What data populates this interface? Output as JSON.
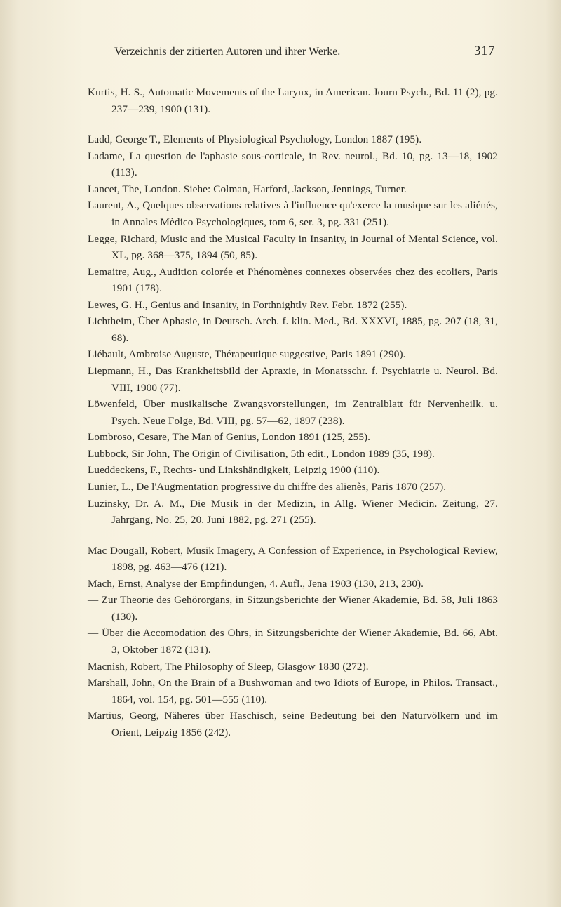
{
  "header": {
    "title": "Verzeichnis der zitierten Autoren und ihrer Werke.",
    "page_number": "317"
  },
  "entries": [
    "Kurtis, H. S., Automatic Movements of the Larynx, in American. Journ Psych., Bd. 11 (2), pg. 237—239, 1900 (131).",
    "Ladd, George T., Elements of Physiological Psychology, London 1887 (195).",
    "Ladame, La question de l'aphasie sous-corticale, in Rev. neurol., Bd. 10, pg. 13—18, 1902 (113).",
    "Lancet, The, London. Siehe: Colman, Harford, Jackson, Jennings, Turner.",
    "Laurent, A., Quelques observations relatives à l'influence qu'exerce la musique sur les aliénés, in Annales Mèdico Psychologiques, tom 6, ser. 3, pg. 331 (251).",
    "Legge, Richard, Music and the Musical Faculty in Insanity, in Journal of Mental Science, vol. XL, pg. 368—375, 1894 (50, 85).",
    "Lemaitre, Aug., Audition colorée et Phénomènes connexes observées chez des ecoliers, Paris 1901 (178).",
    "Lewes, G. H., Genius and Insanity, in Forthnightly Rev. Febr. 1872 (255).",
    "Lichtheim, Über Aphasie, in Deutsch. Arch. f. klin. Med., Bd. XXXVI, 1885, pg. 207 (18, 31, 68).",
    "Liébault, Ambroise Auguste, Thérapeutique suggestive, Paris 1891 (290).",
    "Liepmann, H., Das Krankheitsbild der Apraxie, in Monatsschr. f. Psychiatrie u. Neurol. Bd. VIII, 1900 (77).",
    "Löwenfeld, Über musikalische Zwangsvorstellungen, im Zentralblatt für Nervenheilk. u. Psych. Neue Folge, Bd. VIII, pg. 57—62, 1897 (238).",
    "Lombroso, Cesare, The Man of Genius, London 1891 (125, 255).",
    "Lubbock, Sir John, The Origin of Civilisation, 5th edit., London 1889 (35, 198).",
    "Lueddeckens, F., Rechts- und Linkshändigkeit, Leipzig 1900 (110).",
    "Lunier, L., De l'Augmentation progressive du chiffre des alienès, Paris 1870 (257).",
    "Luzinsky, Dr. A. M., Die Musik in der Medizin, in Allg. Wiener Medicin. Zeitung, 27. Jahrgang, No. 25, 20. Juni 1882, pg. 271 (255).",
    "Mac Dougall, Robert, Musik Imagery, A Confession of Experience, in Psychological Review, 1898, pg. 463—476 (121).",
    "Mach, Ernst, Analyse der Empfindungen, 4. Aufl., Jena 1903 (130, 213, 230).",
    "— Zur Theorie des Gehörorgans, in Sitzungsberichte der Wiener Akademie, Bd. 58, Juli 1863 (130).",
    "— Über die Accomodation des Ohrs, in Sitzungsberichte der Wiener Akademie, Bd. 66, Abt. 3, Oktober 1872 (131).",
    "Macnish, Robert, The Philosophy of Sleep, Glasgow 1830 (272).",
    "Marshall, John, On the Brain of a Bushwoman and two Idiots of Europe, in Philos. Transact., 1864, vol. 154, pg. 501—555 (110).",
    "Martius, Georg, Näheres über Haschisch, seine Bedeutung bei den Natur­völkern und im Orient, Leipzig 1856 (242)."
  ],
  "group_breaks_after": [
    0,
    16
  ]
}
